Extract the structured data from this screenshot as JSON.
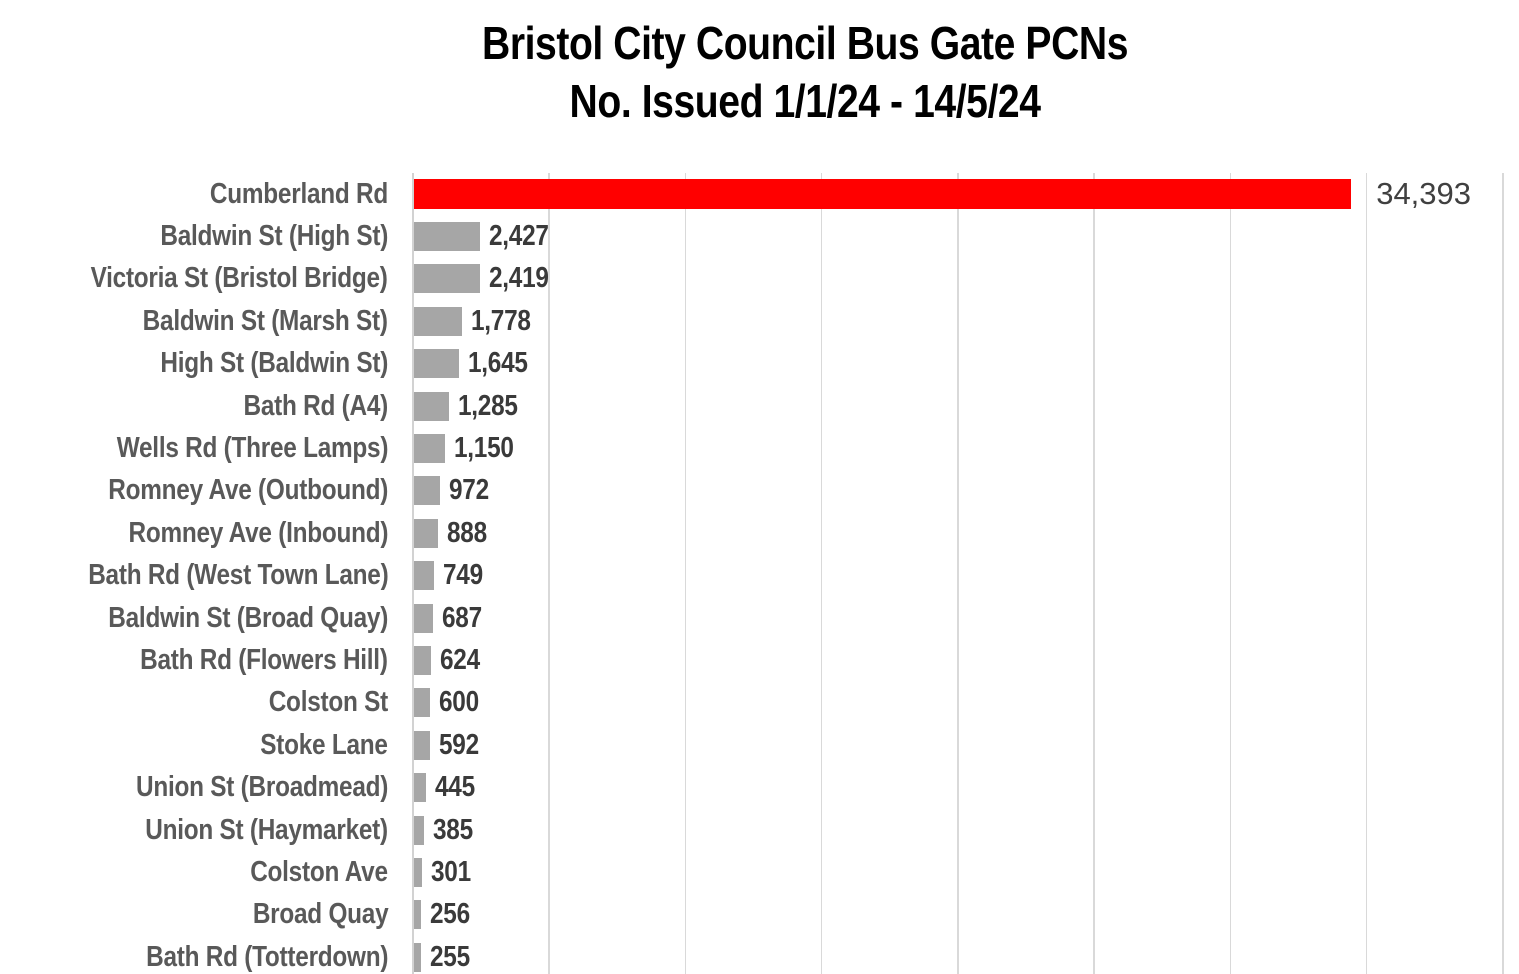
{
  "chart_data": {
    "type": "bar",
    "orientation": "horizontal",
    "title": "Bristol City Council Bus Gate PCNs",
    "subtitle": "No. Issued 1/1/24 - 14/5/24",
    "categories": [
      "Cumberland Rd",
      "Baldwin St (High St)",
      "Victoria St (Bristol Bridge)",
      "Baldwin St (Marsh St)",
      "High St (Baldwin St)",
      "Bath Rd (A4)",
      "Wells Rd (Three Lamps)",
      "Romney Ave (Outbound)",
      "Romney Ave (Inbound)",
      "Bath Rd (West Town Lane)",
      "Baldwin St (Broad Quay)",
      "Bath Rd (Flowers Hill)",
      "Colston St",
      "Stoke Lane",
      "Union St (Broadmead)",
      "Union St (Haymarket)",
      "Colston Ave",
      "Broad Quay",
      "Bath Rd (Totterdown)"
    ],
    "values": [
      34393,
      2427,
      2419,
      1778,
      1645,
      1285,
      1150,
      972,
      888,
      749,
      687,
      624,
      600,
      592,
      445,
      385,
      301,
      256,
      255
    ],
    "value_labels": [
      "34,393",
      "2,427",
      "2,419",
      "1,778",
      "1,645",
      "1,285",
      "1,150",
      "972",
      "888",
      "749",
      "687",
      "624",
      "600",
      "592",
      "445",
      "385",
      "301",
      "256",
      "255"
    ],
    "xlim": [
      0,
      40000
    ],
    "gridline_interval": 5000,
    "grid": true,
    "legend": "none",
    "highlight_index": 0,
    "colors": {
      "highlight_bar": "#ff0000",
      "bar": "#a6a6a6",
      "gridline": "#d9d9d9",
      "category_label": "#595959",
      "value_label": "#3a3a3a",
      "title": "#000000"
    }
  }
}
